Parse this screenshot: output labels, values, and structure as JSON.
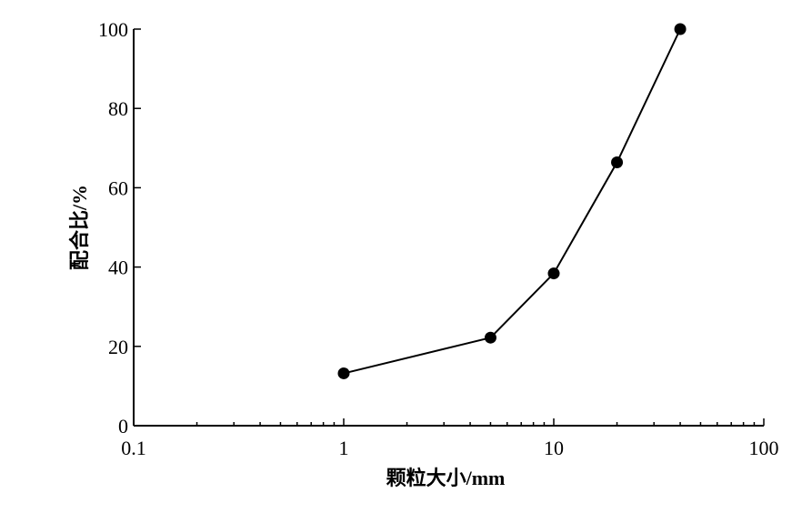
{
  "chart_data": {
    "type": "line",
    "title": "",
    "xlabel": "颗粒大小/mm",
    "ylabel": "配合比/%",
    "xscale": "log",
    "xlim": [
      0.1,
      100
    ],
    "ylim": [
      0,
      100
    ],
    "xticks": [
      "0.1",
      "1",
      "10",
      "100"
    ],
    "yticks": [
      "0",
      "20",
      "40",
      "60",
      "80",
      "100"
    ],
    "grid": false,
    "series": [
      {
        "x": [
          1,
          5,
          10,
          20,
          40
        ],
        "y": [
          13.2,
          22.2,
          38.4,
          66.4,
          100
        ],
        "color": "#000000",
        "marker": "circle"
      }
    ]
  }
}
